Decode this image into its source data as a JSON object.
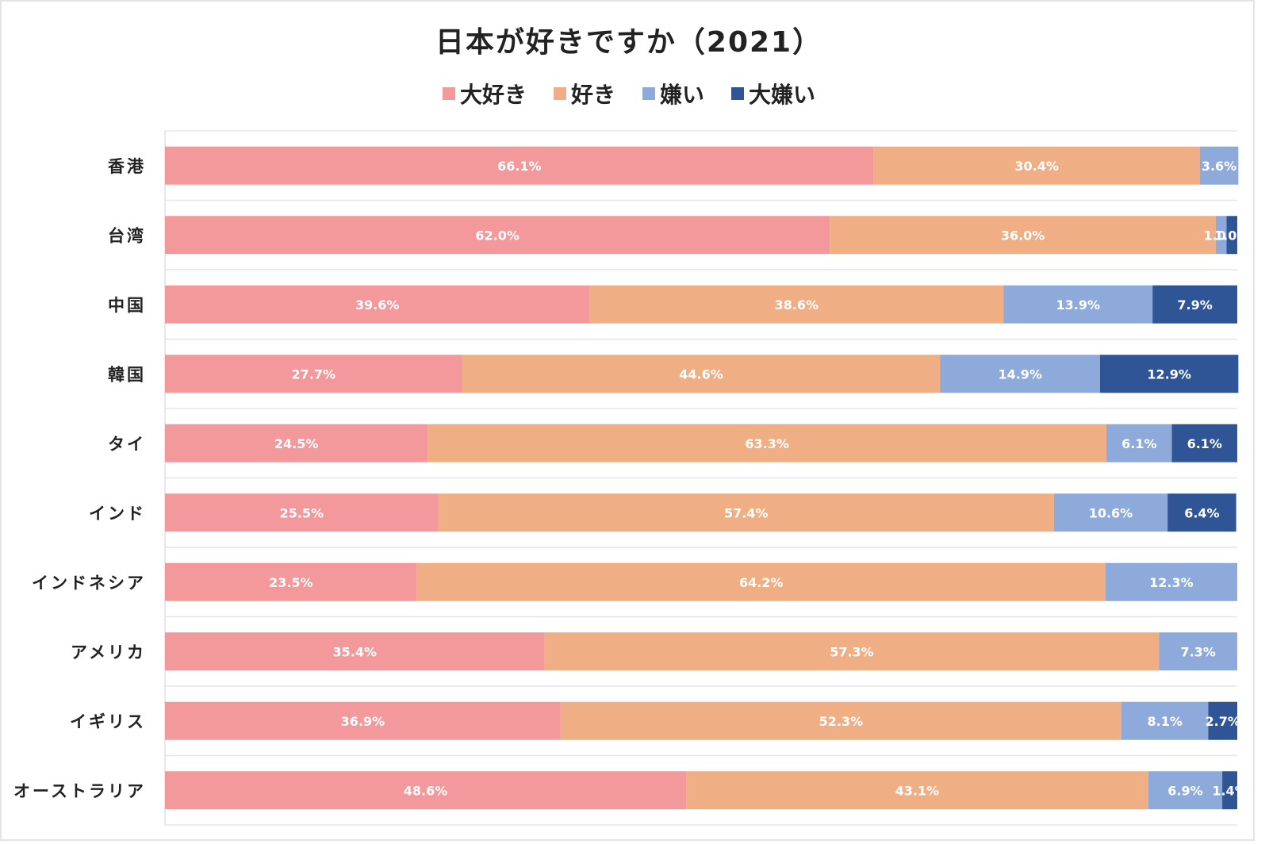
{
  "chart_data": {
    "type": "bar",
    "orientation": "horizontal",
    "stacked": true,
    "title": "日本が好きですか（2021）",
    "categories": [
      "香港",
      "台湾",
      "中国",
      "韓国",
      "タイ",
      "インド",
      "インドネシア",
      "アメリカ",
      "イギリス",
      "オーストラリア"
    ],
    "series": [
      {
        "name": "大好き",
        "color": "#f4999b",
        "values": [
          66.1,
          62.0,
          39.6,
          27.7,
          24.5,
          25.5,
          23.5,
          35.4,
          36.9,
          48.6
        ]
      },
      {
        "name": "好き",
        "color": "#f0ae85",
        "values": [
          30.4,
          36.0,
          38.6,
          44.6,
          63.3,
          57.4,
          64.2,
          57.3,
          52.3,
          43.1
        ]
      },
      {
        "name": "嫌い",
        "color": "#8eaadb",
        "values": [
          3.6,
          1.0,
          13.9,
          14.9,
          6.1,
          10.6,
          12.3,
          7.3,
          8.1,
          6.9
        ]
      },
      {
        "name": "大嫌い",
        "color": "#2f5597",
        "values": [
          0,
          1.0,
          7.9,
          12.9,
          6.1,
          6.4,
          0,
          0,
          2.7,
          1.4
        ]
      }
    ],
    "value_labels": [
      [
        "66.1%",
        "30.4%",
        "3.6%",
        ""
      ],
      [
        "62.0%",
        "36.0%",
        "1.0%",
        "1.0%"
      ],
      [
        "39.6%",
        "38.6%",
        "13.9%",
        "7.9%"
      ],
      [
        "27.7%",
        "44.6%",
        "14.9%",
        "12.9%"
      ],
      [
        "24.5%",
        "63.3%",
        "6.1%",
        "6.1%"
      ],
      [
        "25.5%",
        "57.4%",
        "10.6%",
        "6.4%"
      ],
      [
        "23.5%",
        "64.2%",
        "12.3%",
        ""
      ],
      [
        "35.4%",
        "57.3%",
        "7.3%",
        ""
      ],
      [
        "36.9%",
        "52.3%",
        "8.1%",
        "2.7%"
      ],
      [
        "48.6%",
        "43.1%",
        "6.9%",
        "1.4%"
      ]
    ],
    "xlim": [
      0,
      100
    ],
    "legend_position": "top",
    "grid": true
  }
}
